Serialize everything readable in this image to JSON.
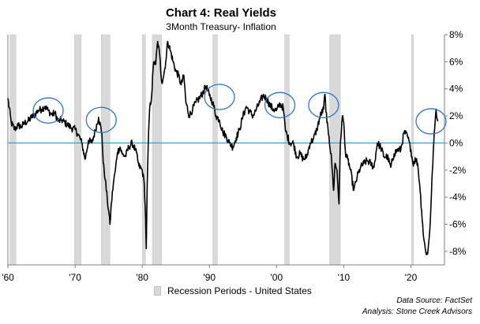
{
  "chart_data": {
    "type": "line",
    "title": "Chart 4: Real Yields",
    "subtitle": "3Month Treasury- Inflation",
    "xlabel": "",
    "ylabel": "",
    "xlim": [
      1960,
      2025
    ],
    "ylim": [
      -9,
      8
    ],
    "x_ticks": [
      {
        "value": 1960,
        "label": "'60"
      },
      {
        "value": 1970,
        "label": "'70"
      },
      {
        "value": 1980,
        "label": "'80"
      },
      {
        "value": 1990,
        "label": "'90"
      },
      {
        "value": 2000,
        "label": "'00"
      },
      {
        "value": 2010,
        "label": "'10"
      },
      {
        "value": 2020,
        "label": "'20"
      }
    ],
    "y_ticks": [
      {
        "value": 8,
        "label": "8%"
      },
      {
        "value": 6,
        "label": "6%"
      },
      {
        "value": 4,
        "label": "4%"
      },
      {
        "value": 2,
        "label": "2%"
      },
      {
        "value": 0,
        "label": "0%"
      },
      {
        "value": -2,
        "label": "-2%"
      },
      {
        "value": -4,
        "label": "-4%"
      },
      {
        "value": -6,
        "label": "-6%"
      },
      {
        "value": -8,
        "label": "-8%"
      }
    ],
    "zero_line": 0,
    "series": [
      {
        "name": "Real Yield (3M Treasury - Inflation)",
        "color": "#000000",
        "points": [
          [
            1960.0,
            3.3
          ],
          [
            1960.5,
            1.5
          ],
          [
            1961.0,
            1.0
          ],
          [
            1961.5,
            1.3
          ],
          [
            1962.0,
            1.2
          ],
          [
            1962.5,
            1.5
          ],
          [
            1963.0,
            1.6
          ],
          [
            1963.5,
            1.9
          ],
          [
            1964.0,
            2.1
          ],
          [
            1964.5,
            2.4
          ],
          [
            1965.0,
            2.5
          ],
          [
            1965.5,
            2.7
          ],
          [
            1966.0,
            2.4
          ],
          [
            1966.5,
            2.1
          ],
          [
            1967.0,
            2.2
          ],
          [
            1967.5,
            1.6
          ],
          [
            1968.0,
            1.7
          ],
          [
            1968.5,
            1.5
          ],
          [
            1969.0,
            1.3
          ],
          [
            1969.5,
            1.1
          ],
          [
            1970.0,
            1.0
          ],
          [
            1970.5,
            0.6
          ],
          [
            1971.0,
            0.0
          ],
          [
            1971.5,
            -1.2
          ],
          [
            1972.0,
            0.2
          ],
          [
            1972.5,
            0.0
          ],
          [
            1973.0,
            0.9
          ],
          [
            1973.5,
            1.9
          ],
          [
            1974.0,
            0.7
          ],
          [
            1974.2,
            -1.5
          ],
          [
            1974.5,
            -2.7
          ],
          [
            1974.8,
            -4.2
          ],
          [
            1975.0,
            -5.0
          ],
          [
            1975.2,
            -6.0
          ],
          [
            1975.4,
            -4.5
          ],
          [
            1975.7,
            -3.0
          ],
          [
            1976.0,
            -2.0
          ],
          [
            1976.3,
            -0.7
          ],
          [
            1976.7,
            -0.3
          ],
          [
            1977.0,
            -0.8
          ],
          [
            1977.5,
            -1.0
          ],
          [
            1978.0,
            -0.3
          ],
          [
            1978.5,
            0.0
          ],
          [
            1979.0,
            -0.5
          ],
          [
            1979.5,
            -1.7
          ],
          [
            1980.0,
            -2.0
          ],
          [
            1980.3,
            -3.0
          ],
          [
            1980.5,
            -5.5
          ],
          [
            1980.6,
            -7.8
          ],
          [
            1980.75,
            -3.0
          ],
          [
            1980.9,
            0.0
          ],
          [
            1981.1,
            2.5
          ],
          [
            1981.4,
            3.5
          ],
          [
            1981.7,
            6.0
          ],
          [
            1982.0,
            5.8
          ],
          [
            1982.3,
            7.5
          ],
          [
            1982.6,
            6.5
          ],
          [
            1982.9,
            4.5
          ],
          [
            1983.2,
            5.0
          ],
          [
            1983.5,
            6.0
          ],
          [
            1983.8,
            7.5
          ],
          [
            1984.2,
            6.8
          ],
          [
            1984.6,
            6.0
          ],
          [
            1985.0,
            5.3
          ],
          [
            1985.4,
            5.0
          ],
          [
            1985.8,
            4.3
          ],
          [
            1986.2,
            5.0
          ],
          [
            1986.5,
            3.0
          ],
          [
            1987.0,
            2.0
          ],
          [
            1987.5,
            2.5
          ],
          [
            1988.0,
            3.0
          ],
          [
            1988.5,
            3.3
          ],
          [
            1989.0,
            3.7
          ],
          [
            1989.5,
            4.2
          ],
          [
            1990.0,
            3.5
          ],
          [
            1990.5,
            3.0
          ],
          [
            1991.0,
            2.0
          ],
          [
            1991.5,
            1.7
          ],
          [
            1992.0,
            0.8
          ],
          [
            1992.5,
            0.5
          ],
          [
            1993.0,
            0.0
          ],
          [
            1993.5,
            -0.3
          ],
          [
            1994.0,
            0.4
          ],
          [
            1994.5,
            1.0
          ],
          [
            1995.0,
            2.0
          ],
          [
            1995.5,
            2.7
          ],
          [
            1996.0,
            2.3
          ],
          [
            1996.5,
            2.0
          ],
          [
            1997.0,
            2.5
          ],
          [
            1997.5,
            3.0
          ],
          [
            1998.0,
            3.5
          ],
          [
            1998.5,
            3.3
          ],
          [
            1999.0,
            2.8
          ],
          [
            1999.5,
            2.5
          ],
          [
            2000.0,
            2.4
          ],
          [
            2000.5,
            2.9
          ],
          [
            2001.0,
            2.6
          ],
          [
            2001.3,
            1.0
          ],
          [
            2001.6,
            0.5
          ],
          [
            2002.0,
            0.0
          ],
          [
            2002.5,
            0.0
          ],
          [
            2003.0,
            -1.0
          ],
          [
            2003.5,
            -0.8
          ],
          [
            2004.0,
            -1.2
          ],
          [
            2004.5,
            -1.0
          ],
          [
            2005.0,
            0.0
          ],
          [
            2005.5,
            0.3
          ],
          [
            2006.0,
            1.0
          ],
          [
            2006.5,
            2.0
          ],
          [
            2007.0,
            2.5
          ],
          [
            2007.2,
            3.6
          ],
          [
            2007.5,
            1.5
          ],
          [
            2007.8,
            0.5
          ],
          [
            2008.2,
            -1.3
          ],
          [
            2008.5,
            -3.5
          ],
          [
            2008.7,
            -1.5
          ],
          [
            2009.0,
            -2.0
          ],
          [
            2009.3,
            -4.5
          ],
          [
            2009.5,
            0.0
          ],
          [
            2009.8,
            2.0
          ],
          [
            2010.0,
            1.5
          ],
          [
            2010.3,
            -1.0
          ],
          [
            2010.6,
            -1.2
          ],
          [
            2011.0,
            -2.0
          ],
          [
            2011.5,
            -3.5
          ],
          [
            2012.0,
            -2.5
          ],
          [
            2012.5,
            -1.8
          ],
          [
            2013.0,
            -1.5
          ],
          [
            2013.5,
            -1.3
          ],
          [
            2014.0,
            -1.5
          ],
          [
            2014.5,
            -1.8
          ],
          [
            2015.0,
            0.0
          ],
          [
            2015.5,
            -0.3
          ],
          [
            2016.0,
            -1.0
          ],
          [
            2016.5,
            -1.0
          ],
          [
            2017.0,
            -1.8
          ],
          [
            2017.5,
            -0.8
          ],
          [
            2018.0,
            -0.5
          ],
          [
            2018.5,
            -0.5
          ],
          [
            2019.0,
            0.8
          ],
          [
            2019.5,
            0.5
          ],
          [
            2020.0,
            -0.5
          ],
          [
            2020.3,
            -1.5
          ],
          [
            2020.7,
            -1.2
          ],
          [
            2021.0,
            -1.5
          ],
          [
            2021.3,
            -3.0
          ],
          [
            2021.6,
            -5.0
          ],
          [
            2021.9,
            -7.0
          ],
          [
            2022.2,
            -8.0
          ],
          [
            2022.5,
            -8.2
          ],
          [
            2022.8,
            -6.5
          ],
          [
            2023.0,
            -4.5
          ],
          [
            2023.2,
            -2.0
          ],
          [
            2023.4,
            0.0
          ],
          [
            2023.6,
            1.5
          ],
          [
            2023.75,
            2.5
          ],
          [
            2023.9,
            1.8
          ],
          [
            2024.0,
            1.6
          ]
        ]
      }
    ],
    "recessions": [
      {
        "start": 1960.3,
        "end": 1961.2
      },
      {
        "start": 1969.9,
        "end": 1970.9
      },
      {
        "start": 1973.9,
        "end": 1975.2
      },
      {
        "start": 1980.0,
        "end": 1980.5
      },
      {
        "start": 1981.5,
        "end": 1982.9
      },
      {
        "start": 1990.5,
        "end": 1991.2
      },
      {
        "start": 2001.2,
        "end": 2001.9
      },
      {
        "start": 2007.9,
        "end": 2009.5
      },
      {
        "start": 2020.1,
        "end": 2020.4
      }
    ],
    "highlight_circles": [
      {
        "x": 1966.0,
        "y": 2.4
      },
      {
        "x": 1973.9,
        "y": 1.7
      },
      {
        "x": 1991.5,
        "y": 3.4
      },
      {
        "x": 2000.5,
        "y": 2.8
      },
      {
        "x": 2007.0,
        "y": 2.8
      },
      {
        "x": 2023.0,
        "y": 1.6
      }
    ],
    "legend": {
      "label": "Recession Periods - United States",
      "position": "bottom-center"
    }
  },
  "source": "Data Source: FactSet",
  "analysis": "Analysis: Stone Creek Advisors"
}
